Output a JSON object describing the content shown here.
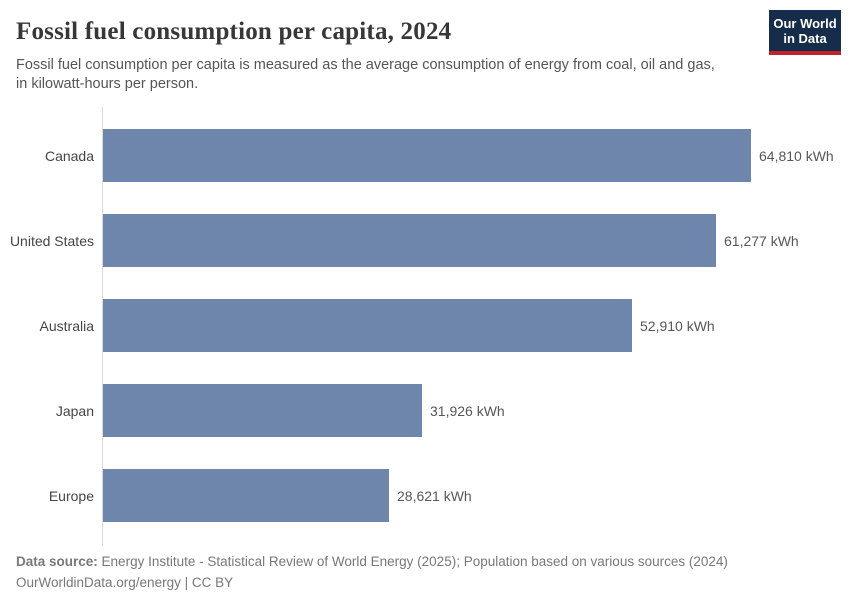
{
  "header": {
    "title": "Fossil fuel consumption per capita, 2024",
    "subtitle_line1": "Fossil fuel consumption per capita is measured as the average consumption of energy from coal, oil and gas,",
    "subtitle_line2": "in kilowatt-hours per person.",
    "logo": {
      "line1": "Our World",
      "line2": "in Data"
    }
  },
  "chart_data": {
    "type": "bar",
    "orientation": "horizontal",
    "title": "Fossil fuel consumption per capita, 2024",
    "categories": [
      "Canada",
      "United States",
      "Australia",
      "Japan",
      "Europe"
    ],
    "values": [
      64810,
      61277,
      52910,
      31926,
      28621
    ],
    "value_labels": [
      "64,810 kWh",
      "61,277 kWh",
      "52,910 kWh",
      "31,926 kWh",
      "28,621 kWh"
    ],
    "unit": "kWh",
    "xlim": [
      0,
      64810
    ],
    "grid": false,
    "legend": "none",
    "bar_color": "#6e86ac"
  },
  "footer": {
    "datasource_label": "Data source:",
    "datasource_text": "Energy Institute - Statistical Review of World Energy (2025); Population based on various sources (2024)",
    "link_line": "OurWorldinData.org/energy | CC BY"
  },
  "colors": {
    "bar": "#6e86ac",
    "title": "#383636",
    "subtitle": "#555555",
    "axis_line": "#dbdbdb",
    "logo_bg": "#152d4b",
    "logo_stripe": "#c0232c",
    "footer_text": "#787878"
  }
}
